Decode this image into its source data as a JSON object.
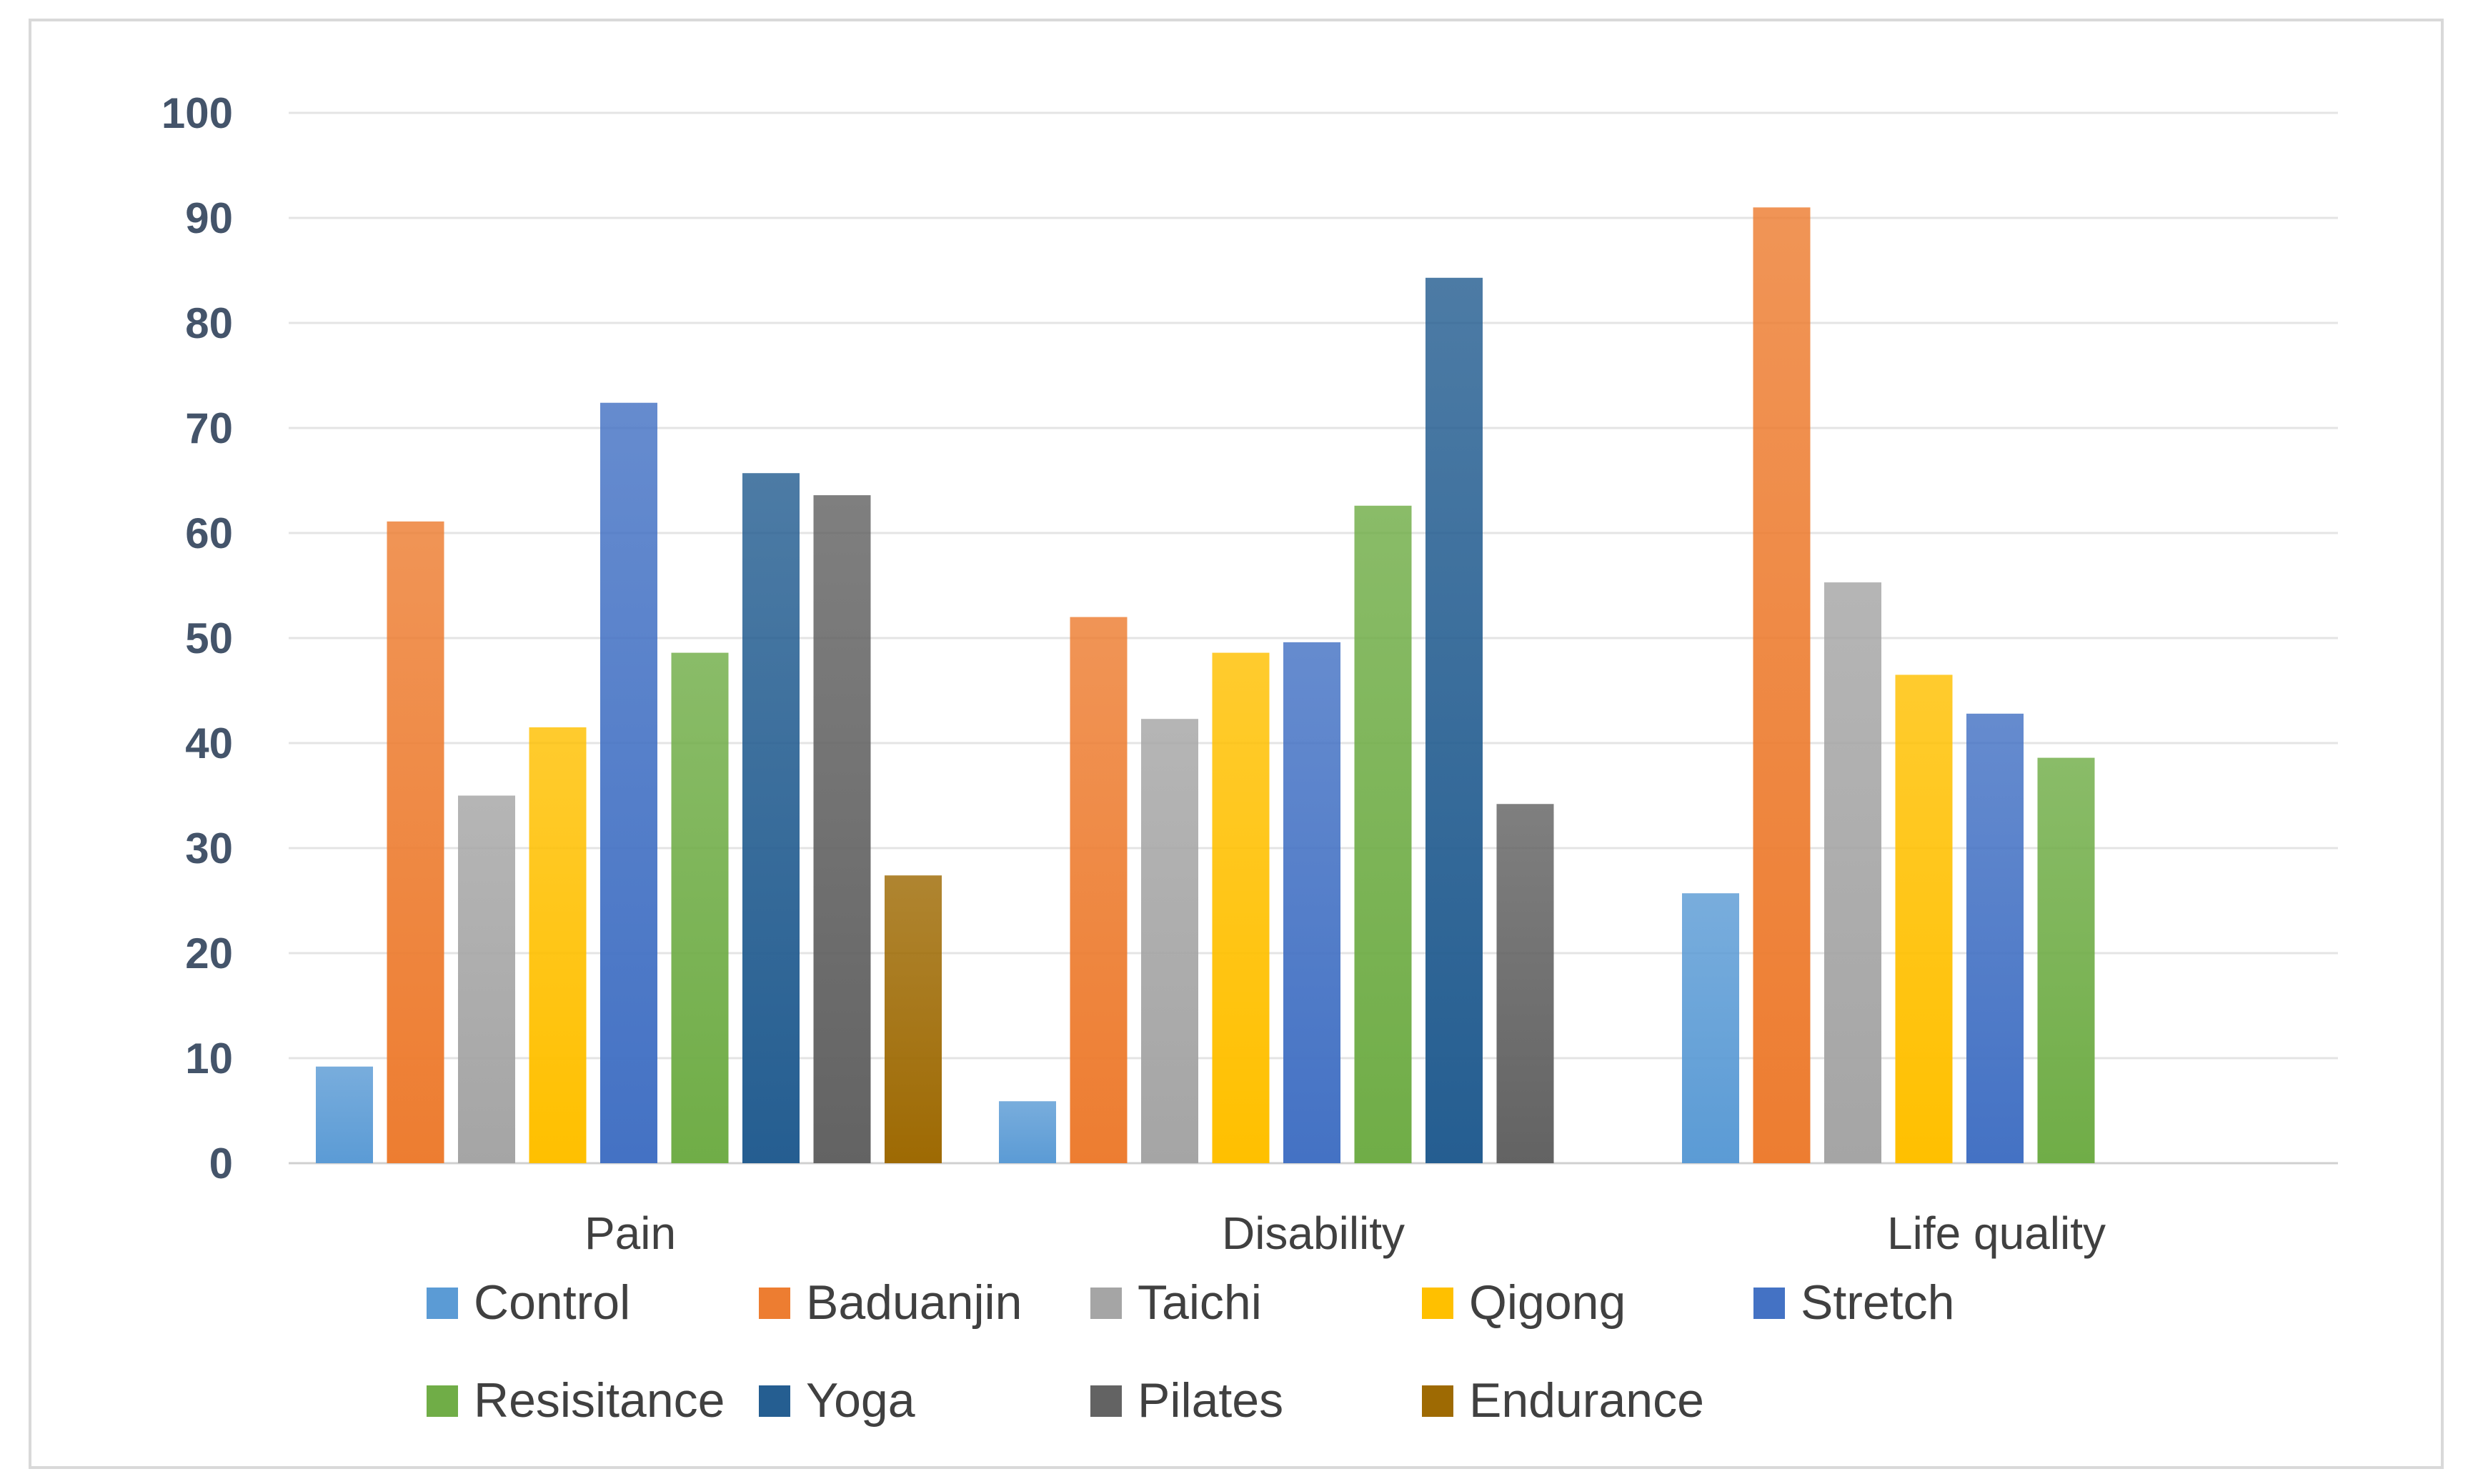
{
  "chart_data": {
    "type": "bar",
    "title": "",
    "xlabel": "",
    "ylabel": "",
    "ylim": [
      0,
      100
    ],
    "yticks": [
      0,
      10,
      20,
      30,
      40,
      50,
      60,
      70,
      80,
      90,
      100
    ],
    "grid": true,
    "legend_position": "bottom",
    "categories": [
      "Pain",
      "Disability",
      "Life quality"
    ],
    "series": [
      {
        "name": "Control",
        "color": "#5b9bd5",
        "values": [
          9.2,
          5.9,
          25.7
        ]
      },
      {
        "name": "Baduanjin",
        "color": "#ed7d31",
        "values": [
          61.1,
          52.0,
          91.0
        ]
      },
      {
        "name": "Taichi",
        "color": "#a5a5a5",
        "values": [
          35.0,
          42.3,
          55.3
        ]
      },
      {
        "name": "Qigong",
        "color": "#ffc000",
        "values": [
          41.5,
          48.6,
          46.5
        ]
      },
      {
        "name": "Stretch",
        "color": "#4472c4",
        "values": [
          72.4,
          49.6,
          42.8
        ]
      },
      {
        "name": "Resisitance",
        "color": "#70ad47",
        "values": [
          48.6,
          62.6,
          38.6
        ]
      },
      {
        "name": "Yoga",
        "color": "#255e91",
        "values": [
          65.7,
          84.3,
          null
        ]
      },
      {
        "name": "Pilates",
        "color": "#636363",
        "values": [
          63.6,
          34.2,
          null
        ]
      },
      {
        "name": "Endurance",
        "color": "#9e6a03",
        "values": [
          27.4,
          null,
          null
        ]
      }
    ]
  }
}
